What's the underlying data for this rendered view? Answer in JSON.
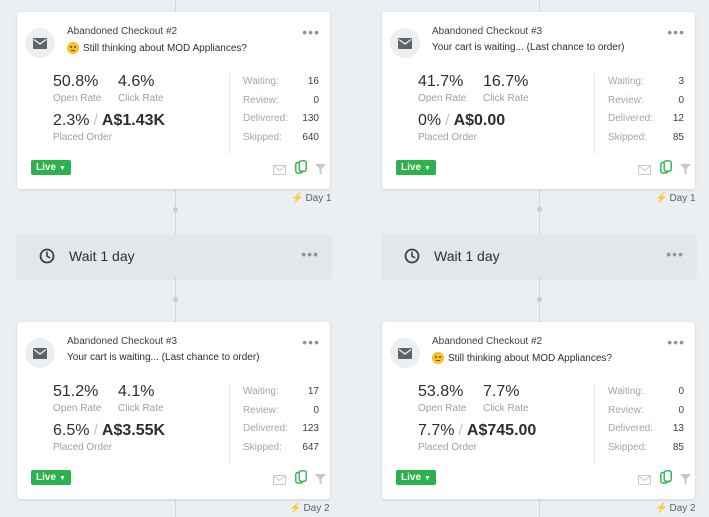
{
  "flow": {
    "columns": [
      {
        "top_card": {
          "title": "Abandoned Checkout #2",
          "subject": "Still thinking about MOD Appliances?",
          "has_emoji": true,
          "open_rate": "50.8%",
          "open_label": "Open Rate",
          "click_rate": "4.6%",
          "click_label": "Click Rate",
          "placed_pct": "2.3%",
          "placed_value": "A$1.43K",
          "placed_label": "Placed Order",
          "stats": [
            {
              "k": "Waiting:",
              "v": "16"
            },
            {
              "k": "Review:",
              "v": "0"
            },
            {
              "k": "Delivered:",
              "v": "130"
            },
            {
              "k": "Skipped:",
              "v": "640"
            }
          ],
          "status": "Live",
          "day": "Day 1"
        },
        "wait": {
          "label": "Wait 1 day"
        },
        "bottom_card": {
          "title": "Abandoned Checkout #3",
          "subject": "Your cart is waiting... (Last chance to order)",
          "has_emoji": false,
          "open_rate": "51.2%",
          "open_label": "Open Rate",
          "click_rate": "4.1%",
          "click_label": "Click Rate",
          "placed_pct": "6.5%",
          "placed_value": "A$3.55K",
          "placed_label": "Placed Order",
          "stats": [
            {
              "k": "Waiting:",
              "v": "17"
            },
            {
              "k": "Review:",
              "v": "0"
            },
            {
              "k": "Delivered:",
              "v": "123"
            },
            {
              "k": "Skipped:",
              "v": "647"
            }
          ],
          "status": "Live",
          "day": "Day 2"
        }
      },
      {
        "top_card": {
          "title": "Abandoned Checkout #3",
          "subject": "Your cart is waiting... (Last chance to order)",
          "has_emoji": false,
          "open_rate": "41.7%",
          "open_label": "Open Rate",
          "click_rate": "16.7%",
          "click_label": "Click Rate",
          "placed_pct": "0%",
          "placed_value": "A$0.00",
          "placed_label": "Placed Order",
          "stats": [
            {
              "k": "Waiting:",
              "v": "3"
            },
            {
              "k": "Review:",
              "v": "0"
            },
            {
              "k": "Delivered:",
              "v": "12"
            },
            {
              "k": "Skipped:",
              "v": "85"
            }
          ],
          "status": "Live",
          "day": "Day 1"
        },
        "wait": {
          "label": "Wait 1 day"
        },
        "bottom_card": {
          "title": "Abandoned Checkout #2",
          "subject": "Still thinking about MOD Appliances?",
          "has_emoji": true,
          "open_rate": "53.8%",
          "open_label": "Open Rate",
          "click_rate": "7.7%",
          "click_label": "Click Rate",
          "placed_pct": "7.7%",
          "placed_value": "A$745.00",
          "placed_label": "Placed Order",
          "stats": [
            {
              "k": "Waiting:",
              "v": "0"
            },
            {
              "k": "Review:",
              "v": "0"
            },
            {
              "k": "Delivered:",
              "v": "13"
            },
            {
              "k": "Skipped:",
              "v": "85"
            }
          ],
          "status": "Live",
          "day": "Day 2"
        }
      }
    ]
  },
  "icons": {
    "mail": "envelope-icon",
    "more": "ellipsis-icon",
    "clock": "clock-icon",
    "bolt": "lightning-icon",
    "filter": "funnel-icon",
    "copy": "duplicate-icon",
    "preview": "email-preview-icon"
  },
  "colors": {
    "live_badge": "#2bb24c",
    "background": "#eceff2",
    "card": "#ffffff",
    "wait_block": "#e3e7ea"
  }
}
